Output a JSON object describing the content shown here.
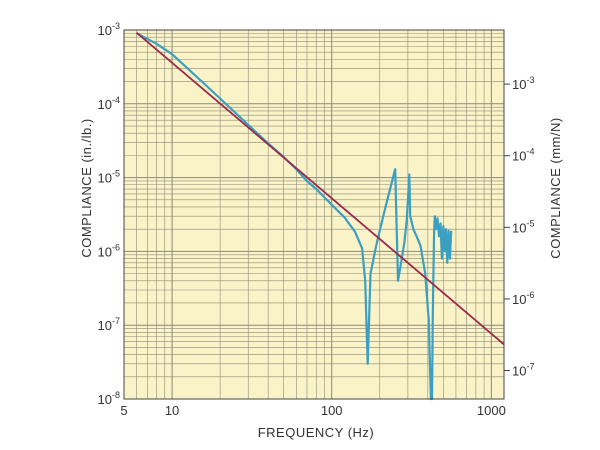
{
  "chart_data": {
    "type": "line",
    "title": "",
    "xlabel": "FREQUENCY (Hz)",
    "ylabel_left": "COMPLIANCE (in./lb.)",
    "ylabel_right": "COMPLIANCE (mm/N)",
    "x_scale": "log",
    "y_scale": "log",
    "xlim": [
      5,
      1200
    ],
    "ylim_left": [
      1e-08,
      0.001
    ],
    "ylim_right_mm_per_N": [
      4e-08,
      0.0057
    ],
    "grid": true,
    "x_tick_labels": [
      "5",
      "10",
      "100",
      "1000"
    ],
    "x_tick_values": [
      5,
      10,
      100,
      1000
    ],
    "y_left_tick_labels": [
      {
        "base": "10",
        "exp": "-3",
        "value": 0.001
      },
      {
        "base": "10",
        "exp": "-4",
        "value": 0.0001
      },
      {
        "base": "10",
        "exp": "-5",
        "value": 1e-05
      },
      {
        "base": "10",
        "exp": "-6",
        "value": 1e-06
      },
      {
        "base": "10",
        "exp": "-7",
        "value": 1e-07
      },
      {
        "base": "10",
        "exp": "-8",
        "value": 1e-08
      }
    ],
    "y_right_tick_labels": [
      {
        "base": "10",
        "exp": "-3",
        "value": 0.001
      },
      {
        "base": "10",
        "exp": "-4",
        "value": 0.0001
      },
      {
        "base": "10",
        "exp": "-5",
        "value": 1e-05
      },
      {
        "base": "10",
        "exp": "-6",
        "value": 1e-06
      },
      {
        "base": "10",
        "exp": "-7",
        "value": 1e-07
      }
    ],
    "series": [
      {
        "color": "#3a9fc0",
        "x": [
          6,
          7,
          8,
          10,
          15,
          20,
          30,
          40,
          50,
          60,
          70,
          80,
          100,
          120,
          140,
          155,
          162,
          168,
          175,
          190,
          210,
          230,
          250,
          260,
          275,
          285,
          295,
          300,
          306,
          310,
          325,
          340,
          360,
          385,
          405,
          418,
          425,
          430,
          435,
          438,
          442,
          450,
          460,
          470,
          480,
          490,
          500,
          510,
          520,
          530,
          540,
          550,
          560
        ],
        "y": [
          0.0009,
          0.00076,
          0.00065,
          0.00047,
          0.00021,
          0.000118,
          5.2e-05,
          2.9e-05,
          1.9e-05,
          1.3e-05,
          9e-06,
          7e-06,
          4.3e-06,
          2.9e-06,
          1.85e-06,
          1.1e-06,
          4e-07,
          3e-08,
          5e-07,
          1.2e-06,
          3e-06,
          6.5e-06,
          1.3e-05,
          4e-07,
          8e-07,
          1.3e-06,
          2.6e-06,
          5e-06,
          1.1e-05,
          3e-06,
          2e-06,
          1.6e-06,
          1.2e-06,
          5e-07,
          1.2e-07,
          3e-09,
          1e-08,
          1.4e-07,
          7e-07,
          1.8e-06,
          3e-06,
          2e-06,
          2.8e-06,
          1.6e-06,
          2.4e-06,
          8e-07,
          2.2e-06,
          1e-06,
          2e-06,
          7e-07,
          1.9e-06,
          8e-07,
          1.9e-06
        ]
      },
      {
        "color": "#9c2a4a",
        "x": [
          6,
          1200
        ],
        "y": [
          0.00092,
          5.5e-08
        ]
      }
    ]
  },
  "colors": {
    "plot_background": "#fbf3c8",
    "grid": "#8a8a78",
    "frame": "#444444",
    "tick_text": "#333333"
  }
}
